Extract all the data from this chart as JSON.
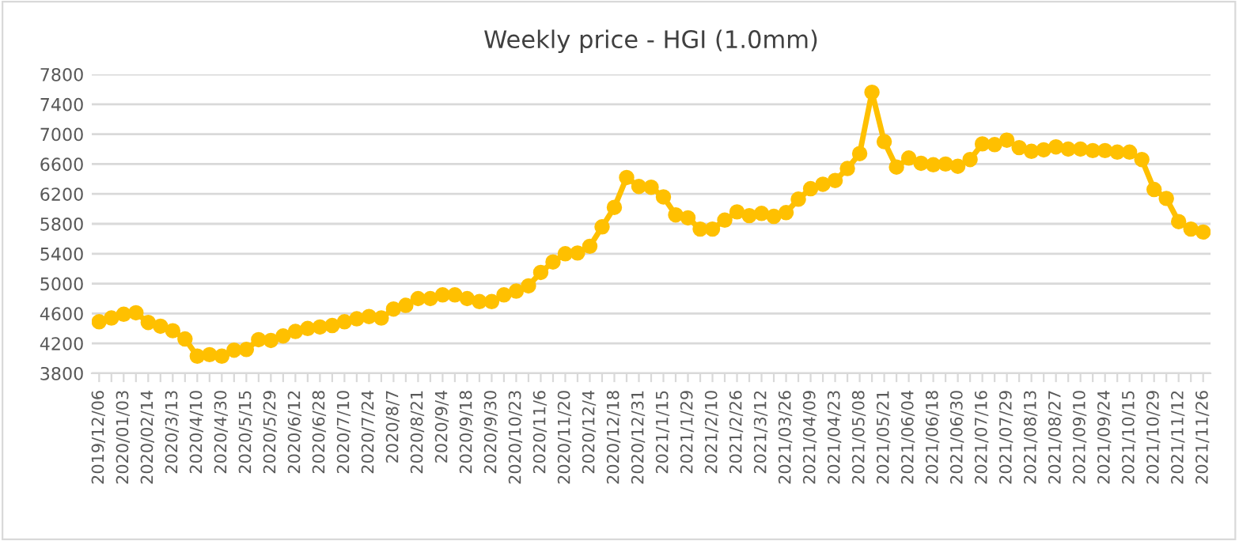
{
  "chart_data": {
    "type": "line",
    "title": "Weekly price - HGI (1.0mm)",
    "categories": [
      "2019/12/06",
      null,
      "2020/01/03",
      null,
      "2020/02/14",
      null,
      "2020/3/13",
      null,
      "2020/4/10",
      null,
      "2020/4/30",
      null,
      "2020/5/15",
      null,
      "2020/5/29",
      null,
      "2020/6/12",
      null,
      "2020/6/28",
      null,
      "2020/7/10",
      null,
      "2020/7/24",
      null,
      "2020/8/7",
      null,
      "2020/8/21",
      null,
      "2020/9/4",
      null,
      "2020/9/18",
      null,
      "2020/9/30",
      null,
      "2020/10/23",
      null,
      "2020/11/6",
      null,
      "2020/11/20",
      null,
      "2020/12/4",
      null,
      "2020/12/18",
      null,
      "2020/12/31",
      null,
      "2021/1/15",
      null,
      "2021/1/29",
      null,
      "2021/2/10",
      null,
      "2021/2/26",
      null,
      "2021/3/12",
      null,
      "2021/03/26",
      null,
      "2021/04/09",
      null,
      "2021/04/23",
      null,
      "2021/05/08",
      null,
      "2021/05/21",
      null,
      "2021/06/04",
      null,
      "2021/06/18",
      null,
      "2021/06/30",
      null,
      "2021/07/16",
      null,
      "2021/07/29",
      null,
      "2021/08/13",
      null,
      "2021/08/27",
      null,
      "2021/09/10",
      null,
      "2021/09/24",
      null,
      "2021/10/15",
      null,
      "2021/10/29",
      null,
      "2021/11/12",
      null,
      "2021/11/26"
    ],
    "series": [
      {
        "color": "#ffc000",
        "values": [
          4490,
          4540,
          4590,
          4610,
          4480,
          4430,
          4370,
          4260,
          4030,
          4050,
          4030,
          4110,
          4120,
          4250,
          4240,
          4300,
          4360,
          4400,
          4420,
          4440,
          4490,
          4530,
          4560,
          4540,
          4660,
          4710,
          4800,
          4800,
          4850,
          4850,
          4800,
          4760,
          4760,
          4850,
          4900,
          4970,
          5150,
          5290,
          5400,
          5410,
          5500,
          5760,
          6020,
          6420,
          6300,
          6290,
          6160,
          5920,
          5880,
          5730,
          5730,
          5850,
          5960,
          5910,
          5940,
          5900,
          5950,
          6130,
          6270,
          6330,
          6380,
          6540,
          6740,
          7560,
          6900,
          6560,
          6680,
          6610,
          6590,
          6600,
          6570,
          6660,
          6870,
          6860,
          6920,
          6820,
          6770,
          6790,
          6830,
          6800,
          6800,
          6780,
          6780,
          6760,
          6760,
          6660,
          6260,
          6140,
          5830,
          5730,
          5690
        ]
      }
    ],
    "ylim": [
      3800,
      7800
    ],
    "yticks": [
      3800,
      4200,
      4600,
      5000,
      5400,
      5800,
      6200,
      6600,
      7000,
      7400,
      7800
    ],
    "grid": "y",
    "marker": "circle",
    "line_style": "solid"
  }
}
